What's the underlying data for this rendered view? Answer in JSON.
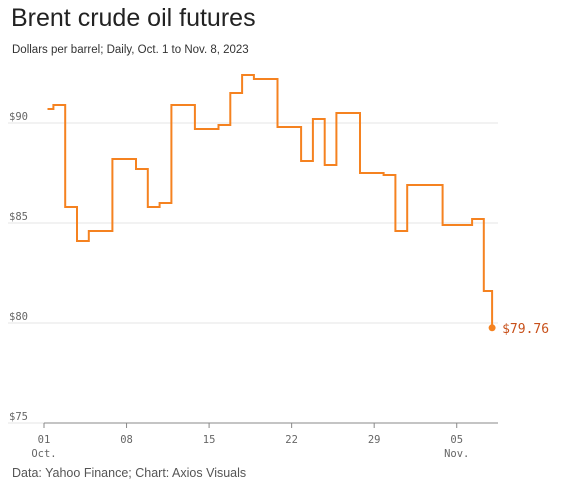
{
  "header": {
    "title": "Brent crude oil futures",
    "subtitle": "Dollars per barrel; Daily, Oct. 1 to Nov. 8, 2023"
  },
  "footer": {
    "source": "Data: Yahoo Finance; Chart: Axios Visuals"
  },
  "colors": {
    "line": "#f58220",
    "end_label": "#c8501a",
    "grid": "#e6e6e6",
    "axis": "#888888"
  },
  "chart_data": {
    "type": "line",
    "step": true,
    "grid": true,
    "y_ticks": [
      {
        "value": 75,
        "label": "$75"
      },
      {
        "value": 80,
        "label": "$80"
      },
      {
        "value": 85,
        "label": "$85"
      },
      {
        "value": 90,
        "label": "$90"
      }
    ],
    "x_ticks": [
      {
        "day": 1,
        "label": "01",
        "sub": "Oct."
      },
      {
        "day": 8,
        "label": "08",
        "sub": ""
      },
      {
        "day": 15,
        "label": "15",
        "sub": ""
      },
      {
        "day": 22,
        "label": "22",
        "sub": ""
      },
      {
        "day": 29,
        "label": "29",
        "sub": ""
      },
      {
        "day": 36,
        "label": "05",
        "sub": "Nov."
      }
    ],
    "ylim": [
      75,
      92.5
    ],
    "xlim": [
      1,
      39.5
    ],
    "series": [
      {
        "x": [
          1.3,
          1.8,
          2.8,
          3.8,
          4.8,
          6.8,
          8.8,
          9.8,
          10.8,
          11.8,
          13.8,
          15.8,
          16.8,
          17.8,
          18.8,
          20.8,
          22.8,
          23.8,
          24.8,
          25.8,
          27.8,
          29.8,
          30.8,
          31.8,
          34.8,
          37.3,
          38.3,
          39.0
        ],
        "values": [
          90.7,
          90.9,
          85.8,
          84.1,
          84.6,
          88.2,
          87.7,
          85.8,
          86.0,
          90.9,
          89.7,
          89.9,
          91.5,
          92.4,
          92.2,
          89.8,
          88.1,
          90.2,
          87.9,
          90.5,
          87.5,
          87.4,
          84.6,
          86.9,
          84.9,
          85.2,
          81.6,
          79.76
        ]
      }
    ],
    "end_label": "$79.76"
  }
}
